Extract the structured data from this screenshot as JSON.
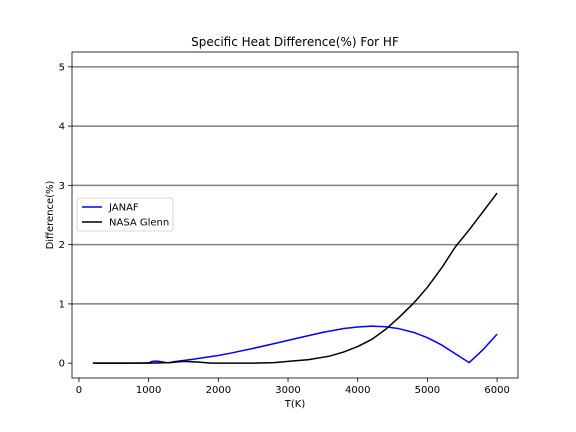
{
  "chart_data": {
    "type": "line",
    "title": "Specific Heat Difference(%) For HF",
    "xlabel": "T(K)",
    "ylabel": "Difference(%)",
    "xlim": [
      -100,
      6300
    ],
    "ylim": [
      -0.25,
      5.25
    ],
    "xticks": [
      0,
      1000,
      2000,
      3000,
      4000,
      5000,
      6000
    ],
    "yticks": [
      0,
      1,
      2,
      3,
      4,
      5
    ],
    "grid": "horizontal major lines",
    "legend_position": "center-left",
    "series": [
      {
        "name": "JANAF",
        "color": "#0000ff",
        "x": [
          200,
          500,
          800,
          1000,
          1050,
          1100,
          1150,
          1200,
          1250,
          1300,
          1400,
          1600,
          1800,
          2000,
          2200,
          2500,
          2800,
          3000,
          3200,
          3500,
          3800,
          4000,
          4200,
          4400,
          4600,
          4800,
          5000,
          5200,
          5400,
          5600,
          5800,
          6000
        ],
        "y": [
          0.0,
          0.0,
          0.0,
          0.005,
          0.03,
          0.035,
          0.03,
          0.02,
          0.01,
          0.01,
          0.03,
          0.06,
          0.095,
          0.13,
          0.175,
          0.25,
          0.33,
          0.385,
          0.44,
          0.52,
          0.585,
          0.61,
          0.625,
          0.615,
          0.58,
          0.52,
          0.43,
          0.31,
          0.16,
          0.01,
          0.23,
          0.49
        ]
      },
      {
        "name": "NASA Glenn",
        "color": "#000000",
        "x": [
          200,
          500,
          1000,
          1300,
          1500,
          1700,
          1900,
          2100,
          2300,
          2500,
          2800,
          3000,
          3300,
          3600,
          3800,
          4000,
          4200,
          4400,
          4600,
          4800,
          5000,
          5200,
          5400,
          5600,
          5800,
          6000
        ],
        "y": [
          0.0,
          0.0,
          0.0,
          0.01,
          0.03,
          0.02,
          0.0,
          0.0,
          0.0,
          0.0,
          0.01,
          0.03,
          0.06,
          0.12,
          0.19,
          0.28,
          0.4,
          0.57,
          0.78,
          1.01,
          1.28,
          1.6,
          1.96,
          2.25,
          2.56,
          2.87
        ]
      }
    ]
  }
}
